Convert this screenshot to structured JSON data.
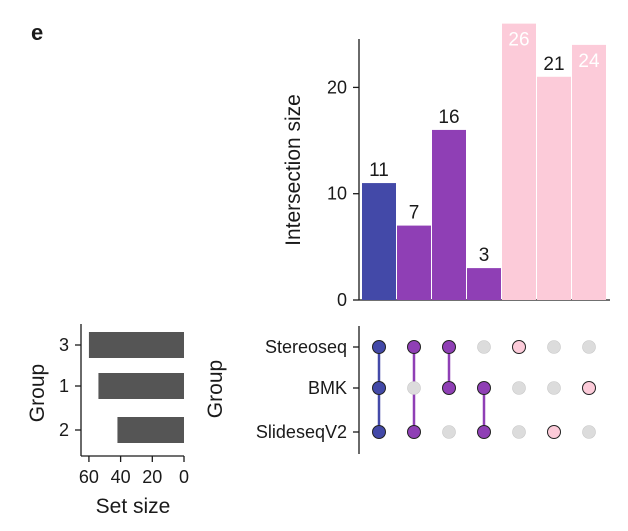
{
  "panel_label": "e",
  "chart_data": {
    "type": "upset",
    "colors": {
      "blue": "#4349a8",
      "purple": "#8f3fb5",
      "pink": "#fccbd9",
      "set_bar": "#555555",
      "dot_inactive": "#dcdcdc"
    },
    "intersection_bars": {
      "ylabel": "Intersection size",
      "ylim": [
        0,
        27
      ],
      "yticks": [
        0,
        10,
        20
      ],
      "values": [
        11,
        7,
        16,
        3,
        26,
        21,
        24
      ],
      "labels": [
        "11",
        "7",
        "16",
        "3",
        "26",
        "21",
        "24"
      ],
      "colors": [
        "blue",
        "purple",
        "purple",
        "purple",
        "pink",
        "pink",
        "pink"
      ],
      "label_inside": [
        false,
        false,
        false,
        false,
        true,
        false,
        true
      ]
    },
    "matrix": {
      "row_axis_label": "Group",
      "rows": [
        "Stereoseq",
        "BMK",
        "SlideseqV2"
      ],
      "membership": [
        [
          1,
          1,
          1
        ],
        [
          1,
          0,
          1
        ],
        [
          1,
          1,
          0
        ],
        [
          0,
          1,
          1
        ],
        [
          1,
          0,
          0
        ],
        [
          0,
          0,
          1
        ],
        [
          0,
          1,
          0
        ]
      ]
    },
    "set_size": {
      "xlabel": "Set size",
      "ylabel": "Group",
      "group_labels": [
        "3",
        "1",
        "2"
      ],
      "values": [
        60,
        54,
        42
      ],
      "xlim": [
        65,
        0
      ],
      "xticks": [
        60,
        40,
        20,
        0
      ]
    }
  }
}
